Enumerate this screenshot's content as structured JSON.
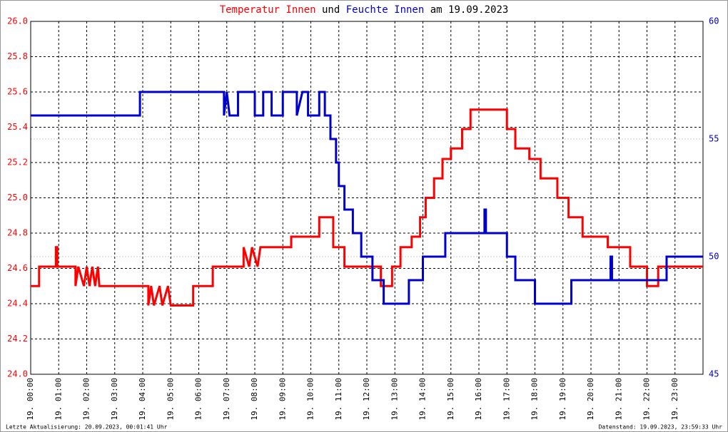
{
  "chart_data": {
    "type": "line",
    "title_parts": [
      {
        "text": "Temperatur Innen",
        "color": "#ff0000"
      },
      {
        "text": "und",
        "color": "#000000"
      },
      {
        "text": "Feuchte Innen",
        "color": "#0000cc"
      },
      {
        "text": "am 19.09.2023",
        "color": "#000000"
      }
    ],
    "footer_left": "Letzte Aktualisierung: 20.09.2023, 00:01:41 Uhr",
    "footer_right": "Datenstand: 19.09.2023, 23:59:33 Uhr",
    "xlim": [
      0,
      24
    ],
    "xticks": [
      {
        "value": 0,
        "label": "19. 00:00"
      },
      {
        "value": 1,
        "label": "19. 01:00"
      },
      {
        "value": 2,
        "label": "19. 02:00"
      },
      {
        "value": 3,
        "label": "19. 03:00"
      },
      {
        "value": 4,
        "label": "19. 04:00"
      },
      {
        "value": 5,
        "label": "19. 05:00"
      },
      {
        "value": 6,
        "label": "19. 06:00"
      },
      {
        "value": 7,
        "label": "19. 07:00"
      },
      {
        "value": 8,
        "label": "19. 08:00"
      },
      {
        "value": 9,
        "label": "19. 09:00"
      },
      {
        "value": 10,
        "label": "19. 10:00"
      },
      {
        "value": 11,
        "label": "19. 11:00"
      },
      {
        "value": 12,
        "label": "19. 12:00"
      },
      {
        "value": 13,
        "label": "19. 13:00"
      },
      {
        "value": 14,
        "label": "19. 14:00"
      },
      {
        "value": 15,
        "label": "19. 15:00"
      },
      {
        "value": 16,
        "label": "19. 16:00"
      },
      {
        "value": 17,
        "label": "19. 17:00"
      },
      {
        "value": 18,
        "label": "19. 18:00"
      },
      {
        "value": 19,
        "label": "19. 19:00"
      },
      {
        "value": 20,
        "label": "19. 20:00"
      },
      {
        "value": 21,
        "label": "19. 21:00"
      },
      {
        "value": 22,
        "label": "19. 22:00"
      },
      {
        "value": 23,
        "label": "19. 23:00"
      }
    ],
    "ylim": [
      24,
      26
    ],
    "yticks": [
      {
        "value": 24,
        "label": "24.0"
      },
      {
        "value": 24.2,
        "label": "24.2"
      },
      {
        "value": 24.4,
        "label": "24.4"
      },
      {
        "value": 24.6,
        "label": "24.6"
      },
      {
        "value": 24.8,
        "label": "24.8"
      },
      {
        "value": 25,
        "label": "25.0"
      },
      {
        "value": 25.2,
        "label": "25.2"
      },
      {
        "value": 25.4,
        "label": "25.4"
      },
      {
        "value": 25.6,
        "label": "25.6"
      },
      {
        "value": 25.8,
        "label": "25.8"
      },
      {
        "value": 26,
        "label": "26.0"
      }
    ],
    "y2lim": [
      45,
      60
    ],
    "y2ticks": [
      45,
      50,
      55,
      60
    ],
    "y2color": "#0000cc",
    "grid": true,
    "series": [
      {
        "name": "Temperatur Innen",
        "color": "#ff0000",
        "x": [
          0,
          0.3,
          0.3,
          0.9,
          0.9,
          0.95,
          0.95,
          1.6,
          1.6,
          1.7,
          1.9,
          2.0,
          2.1,
          2.2,
          2.3,
          2.4,
          2.45,
          4.2,
          4.2,
          4.3,
          4.4,
          4.6,
          4.7,
          4.9,
          5.0,
          5.8,
          5.8,
          6.5,
          6.5,
          7.6,
          7.6,
          7.8,
          7.9,
          8.1,
          8.2,
          9.3,
          9.3,
          10.3,
          10.3,
          10.8,
          10.8,
          11.2,
          11.2,
          12.5,
          12.5,
          12.9,
          12.9,
          13.2,
          13.2,
          13.6,
          13.6,
          13.9,
          13.9,
          14.1,
          14.1,
          14.4,
          14.4,
          14.7,
          14.7,
          15.0,
          15.0,
          15.4,
          15.4,
          15.7,
          15.7,
          17.0,
          17.0,
          17.3,
          17.3,
          17.8,
          17.8,
          18.2,
          18.2,
          18.8,
          18.8,
          19.2,
          19.2,
          19.7,
          19.7,
          20.6,
          20.6,
          21.4,
          21.4,
          22.0,
          22.0,
          22.4,
          22.4,
          24
        ],
        "values": [
          24.5,
          24.5,
          24.61,
          24.61,
          24.72,
          24.72,
          24.61,
          24.61,
          24.5,
          24.61,
          24.5,
          24.61,
          24.5,
          24.61,
          24.5,
          24.61,
          24.5,
          24.5,
          24.39,
          24.5,
          24.39,
          24.5,
          24.39,
          24.5,
          24.39,
          24.39,
          24.5,
          24.5,
          24.61,
          24.61,
          24.72,
          24.61,
          24.72,
          24.61,
          24.72,
          24.72,
          24.78,
          24.78,
          24.89,
          24.89,
          24.72,
          24.72,
          24.61,
          24.61,
          24.5,
          24.5,
          24.61,
          24.61,
          24.72,
          24.72,
          24.78,
          24.78,
          24.89,
          24.89,
          25.0,
          25.0,
          25.11,
          25.11,
          25.22,
          25.22,
          25.28,
          25.28,
          25.39,
          25.39,
          25.5,
          25.5,
          25.39,
          25.39,
          25.28,
          25.28,
          25.22,
          25.22,
          25.11,
          25.11,
          25.0,
          25.0,
          24.89,
          24.89,
          24.78,
          24.78,
          24.72,
          24.72,
          24.61,
          24.61,
          24.5,
          24.5,
          24.61,
          24.61
        ]
      },
      {
        "name": "Feuchte Innen",
        "color": "#0000cc",
        "axis": "y2",
        "x": [
          0,
          3.9,
          3.9,
          6.9,
          6.9,
          7.0,
          7.1,
          7.4,
          7.4,
          8.0,
          8.0,
          8.3,
          8.3,
          8.6,
          8.6,
          9.0,
          9.0,
          9.5,
          9.5,
          9.7,
          9.9,
          9.9,
          10.3,
          10.3,
          10.5,
          10.5,
          10.7,
          10.7,
          10.9,
          10.9,
          11.0,
          11.0,
          11.2,
          11.2,
          11.5,
          11.5,
          11.8,
          11.8,
          12.2,
          12.2,
          12.6,
          12.6,
          13.5,
          13.5,
          14.0,
          14.0,
          14.8,
          14.8,
          16.2,
          16.2,
          16.25,
          16.25,
          17.0,
          17.0,
          17.3,
          17.3,
          18.0,
          18.0,
          19.3,
          19.3,
          20.7,
          20.7,
          20.75,
          20.75,
          22.7,
          22.7,
          24
        ],
        "values": [
          56,
          56,
          57,
          57,
          56,
          57,
          56,
          56,
          57,
          57,
          56,
          56,
          57,
          57,
          56,
          56,
          57,
          57,
          56,
          57,
          57,
          56,
          56,
          57,
          57,
          56,
          56,
          55,
          55,
          54,
          54,
          53,
          53,
          52,
          52,
          51,
          51,
          50,
          50,
          49,
          49,
          48,
          48,
          49,
          49,
          50,
          50,
          51,
          51,
          52,
          52,
          51,
          51,
          50,
          50,
          49,
          49,
          48,
          48,
          49,
          49,
          50,
          50,
          49,
          49,
          50,
          50
        ]
      }
    ]
  }
}
